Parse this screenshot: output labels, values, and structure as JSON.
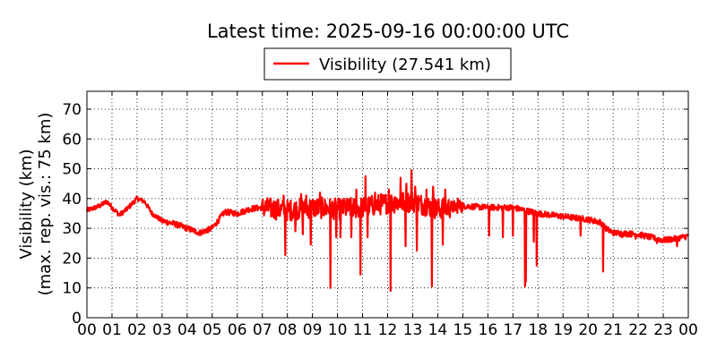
{
  "title": "Latest time: 2025-09-16 00:00:00 UTC",
  "chart_data": {
    "type": "line",
    "ylabel_line1": "Visibility (km)",
    "ylabel_line2": "(max. rep. vis.: 75 km)",
    "ylim": [
      0,
      76
    ],
    "xlim": [
      0,
      24
    ],
    "x_ticks": [
      "00",
      "01",
      "02",
      "03",
      "04",
      "05",
      "06",
      "07",
      "08",
      "09",
      "10",
      "11",
      "12",
      "13",
      "14",
      "15",
      "16",
      "17",
      "18",
      "19",
      "20",
      "21",
      "22",
      "23",
      "00"
    ],
    "y_ticks": [
      0,
      10,
      20,
      30,
      40,
      50,
      60,
      70
    ],
    "grid": true,
    "legend_position": "top-center",
    "series": [
      {
        "name": "Visibility (27.541 km)",
        "color": "#ff0000",
        "baseline": [
          [
            0.0,
            36
          ],
          [
            0.5,
            37.5
          ],
          [
            0.8,
            39
          ],
          [
            1.0,
            37
          ],
          [
            1.3,
            34.5
          ],
          [
            1.6,
            36.5
          ],
          [
            2.0,
            40
          ],
          [
            2.3,
            39
          ],
          [
            2.6,
            35
          ],
          [
            3.0,
            32.5
          ],
          [
            3.5,
            31.5
          ],
          [
            4.0,
            30
          ],
          [
            4.5,
            28.5
          ],
          [
            5.0,
            30
          ],
          [
            5.5,
            35.5
          ],
          [
            6.0,
            35
          ],
          [
            6.5,
            36.5
          ],
          [
            7.0,
            37
          ],
          [
            8.0,
            36
          ],
          [
            9.0,
            37
          ],
          [
            10.0,
            36.5
          ],
          [
            11.0,
            37
          ],
          [
            12.0,
            38.5
          ],
          [
            13.0,
            39
          ],
          [
            14.0,
            36.5
          ],
          [
            15.0,
            37.5
          ],
          [
            16.0,
            37
          ],
          [
            17.0,
            37
          ],
          [
            18.0,
            35
          ],
          [
            19.0,
            34
          ],
          [
            20.0,
            33
          ],
          [
            20.5,
            32
          ],
          [
            20.7,
            30
          ],
          [
            21.0,
            28.5
          ],
          [
            22.0,
            28
          ],
          [
            22.5,
            27
          ],
          [
            23.0,
            26
          ],
          [
            23.5,
            26.5
          ],
          [
            24.0,
            27.5
          ]
        ],
        "dips": [
          [
            7.92,
            21
          ],
          [
            8.32,
            29
          ],
          [
            8.62,
            28
          ],
          [
            8.93,
            24.5
          ],
          [
            9.72,
            10
          ],
          [
            9.95,
            27
          ],
          [
            10.12,
            27
          ],
          [
            10.55,
            27
          ],
          [
            10.92,
            14.5
          ],
          [
            11.2,
            27
          ],
          [
            12.12,
            9
          ],
          [
            12.72,
            24
          ],
          [
            13.17,
            22.5
          ],
          [
            13.77,
            10.5
          ],
          [
            14.2,
            24.5
          ],
          [
            14.8,
            26
          ],
          [
            16.05,
            27.5
          ],
          [
            16.6,
            27
          ],
          [
            17.0,
            27.5
          ],
          [
            17.48,
            10.5
          ],
          [
            17.52,
            12
          ],
          [
            17.83,
            25.5
          ],
          [
            17.95,
            17.5
          ],
          [
            19.7,
            27.5
          ],
          [
            20.6,
            15.5
          ],
          [
            21.35,
            27
          ],
          [
            21.9,
            26.5
          ],
          [
            22.75,
            25
          ],
          [
            23.55,
            24
          ]
        ],
        "spikes": [
          [
            7.85,
            41
          ],
          [
            8.55,
            41.5
          ],
          [
            8.75,
            41
          ],
          [
            9.3,
            42
          ],
          [
            10.28,
            39.5
          ],
          [
            10.75,
            43
          ],
          [
            11.12,
            47.5
          ],
          [
            11.5,
            42
          ],
          [
            12.05,
            43
          ],
          [
            12.3,
            40.5
          ],
          [
            12.52,
            47
          ],
          [
            12.75,
            45
          ],
          [
            12.95,
            49.5
          ],
          [
            13.1,
            44
          ],
          [
            13.55,
            43
          ],
          [
            13.82,
            44
          ],
          [
            14.3,
            43
          ],
          [
            14.8,
            40
          ]
        ],
        "last_value": 27.541
      }
    ]
  }
}
